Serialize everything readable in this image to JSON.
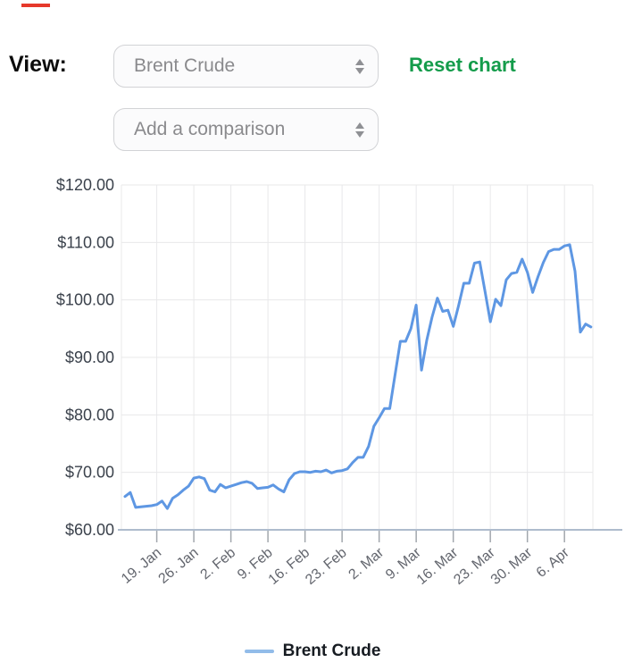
{
  "decoration": {
    "red_mark_color": "#e6392b"
  },
  "toolbar": {
    "view_label": "View:",
    "series_select": {
      "value": "Brent Crude"
    },
    "comparison_select": {
      "placeholder": "Add a comparison"
    },
    "reset_label": "Reset chart",
    "reset_color": "#149c4b"
  },
  "chart_data": {
    "type": "line",
    "series_name": "Brent Crude",
    "ylim": [
      60,
      120
    ],
    "y_ticks": [
      120,
      110,
      100,
      90,
      80,
      70,
      60
    ],
    "y_tick_labels": [
      "$120.00",
      "$110.00",
      "$100.00",
      "$90.00",
      "$80.00",
      "$70.00",
      "$60.00"
    ],
    "x_tick_labels": [
      "19. Jan",
      "26. Jan",
      "2. Feb",
      "9. Feb",
      "16. Feb",
      "23. Feb",
      "2. Mar",
      "9. Mar",
      "16. Mar",
      "23. Mar",
      "30. Mar",
      "6. Apr"
    ],
    "x_tick_indices": [
      6,
      13,
      20,
      27,
      34,
      41,
      48,
      55,
      62,
      69,
      76,
      83
    ],
    "values": [
      65.8,
      66.5,
      63.9,
      64.0,
      64.1,
      64.2,
      64.4,
      65.0,
      63.7,
      65.5,
      66.1,
      66.9,
      67.6,
      69.0,
      69.2,
      68.9,
      66.9,
      66.6,
      67.9,
      67.3,
      67.6,
      67.9,
      68.2,
      68.4,
      68.1,
      67.2,
      67.3,
      67.4,
      67.8,
      67.1,
      66.6,
      68.7,
      69.8,
      70.1,
      70.1,
      70.0,
      70.2,
      70.1,
      70.4,
      69.9,
      70.2,
      70.3,
      70.6,
      71.7,
      72.6,
      72.6,
      74.5,
      78.0,
      79.5,
      81.1,
      81.1,
      86.9,
      92.8,
      92.8,
      95.0,
      99.1,
      87.8,
      93.0,
      97.0,
      100.3,
      98.0,
      98.2,
      95.4,
      99.0,
      102.9,
      102.9,
      106.4,
      106.6,
      101.5,
      96.2,
      100.1,
      99.0,
      103.5,
      104.6,
      104.8,
      107.1,
      104.8,
      101.3,
      104.0,
      106.5,
      108.4,
      108.8,
      108.8,
      109.4,
      109.6,
      105.0,
      94.4,
      95.8,
      95.3
    ],
    "grid": true,
    "legend_position": "bottom",
    "line_color": "#5e97e3",
    "legend_swatch_color": "#92bce9",
    "grid_color": "#e8e8ea",
    "baseline_color": "#aebccd",
    "tick_color": "#a2a7ad"
  }
}
